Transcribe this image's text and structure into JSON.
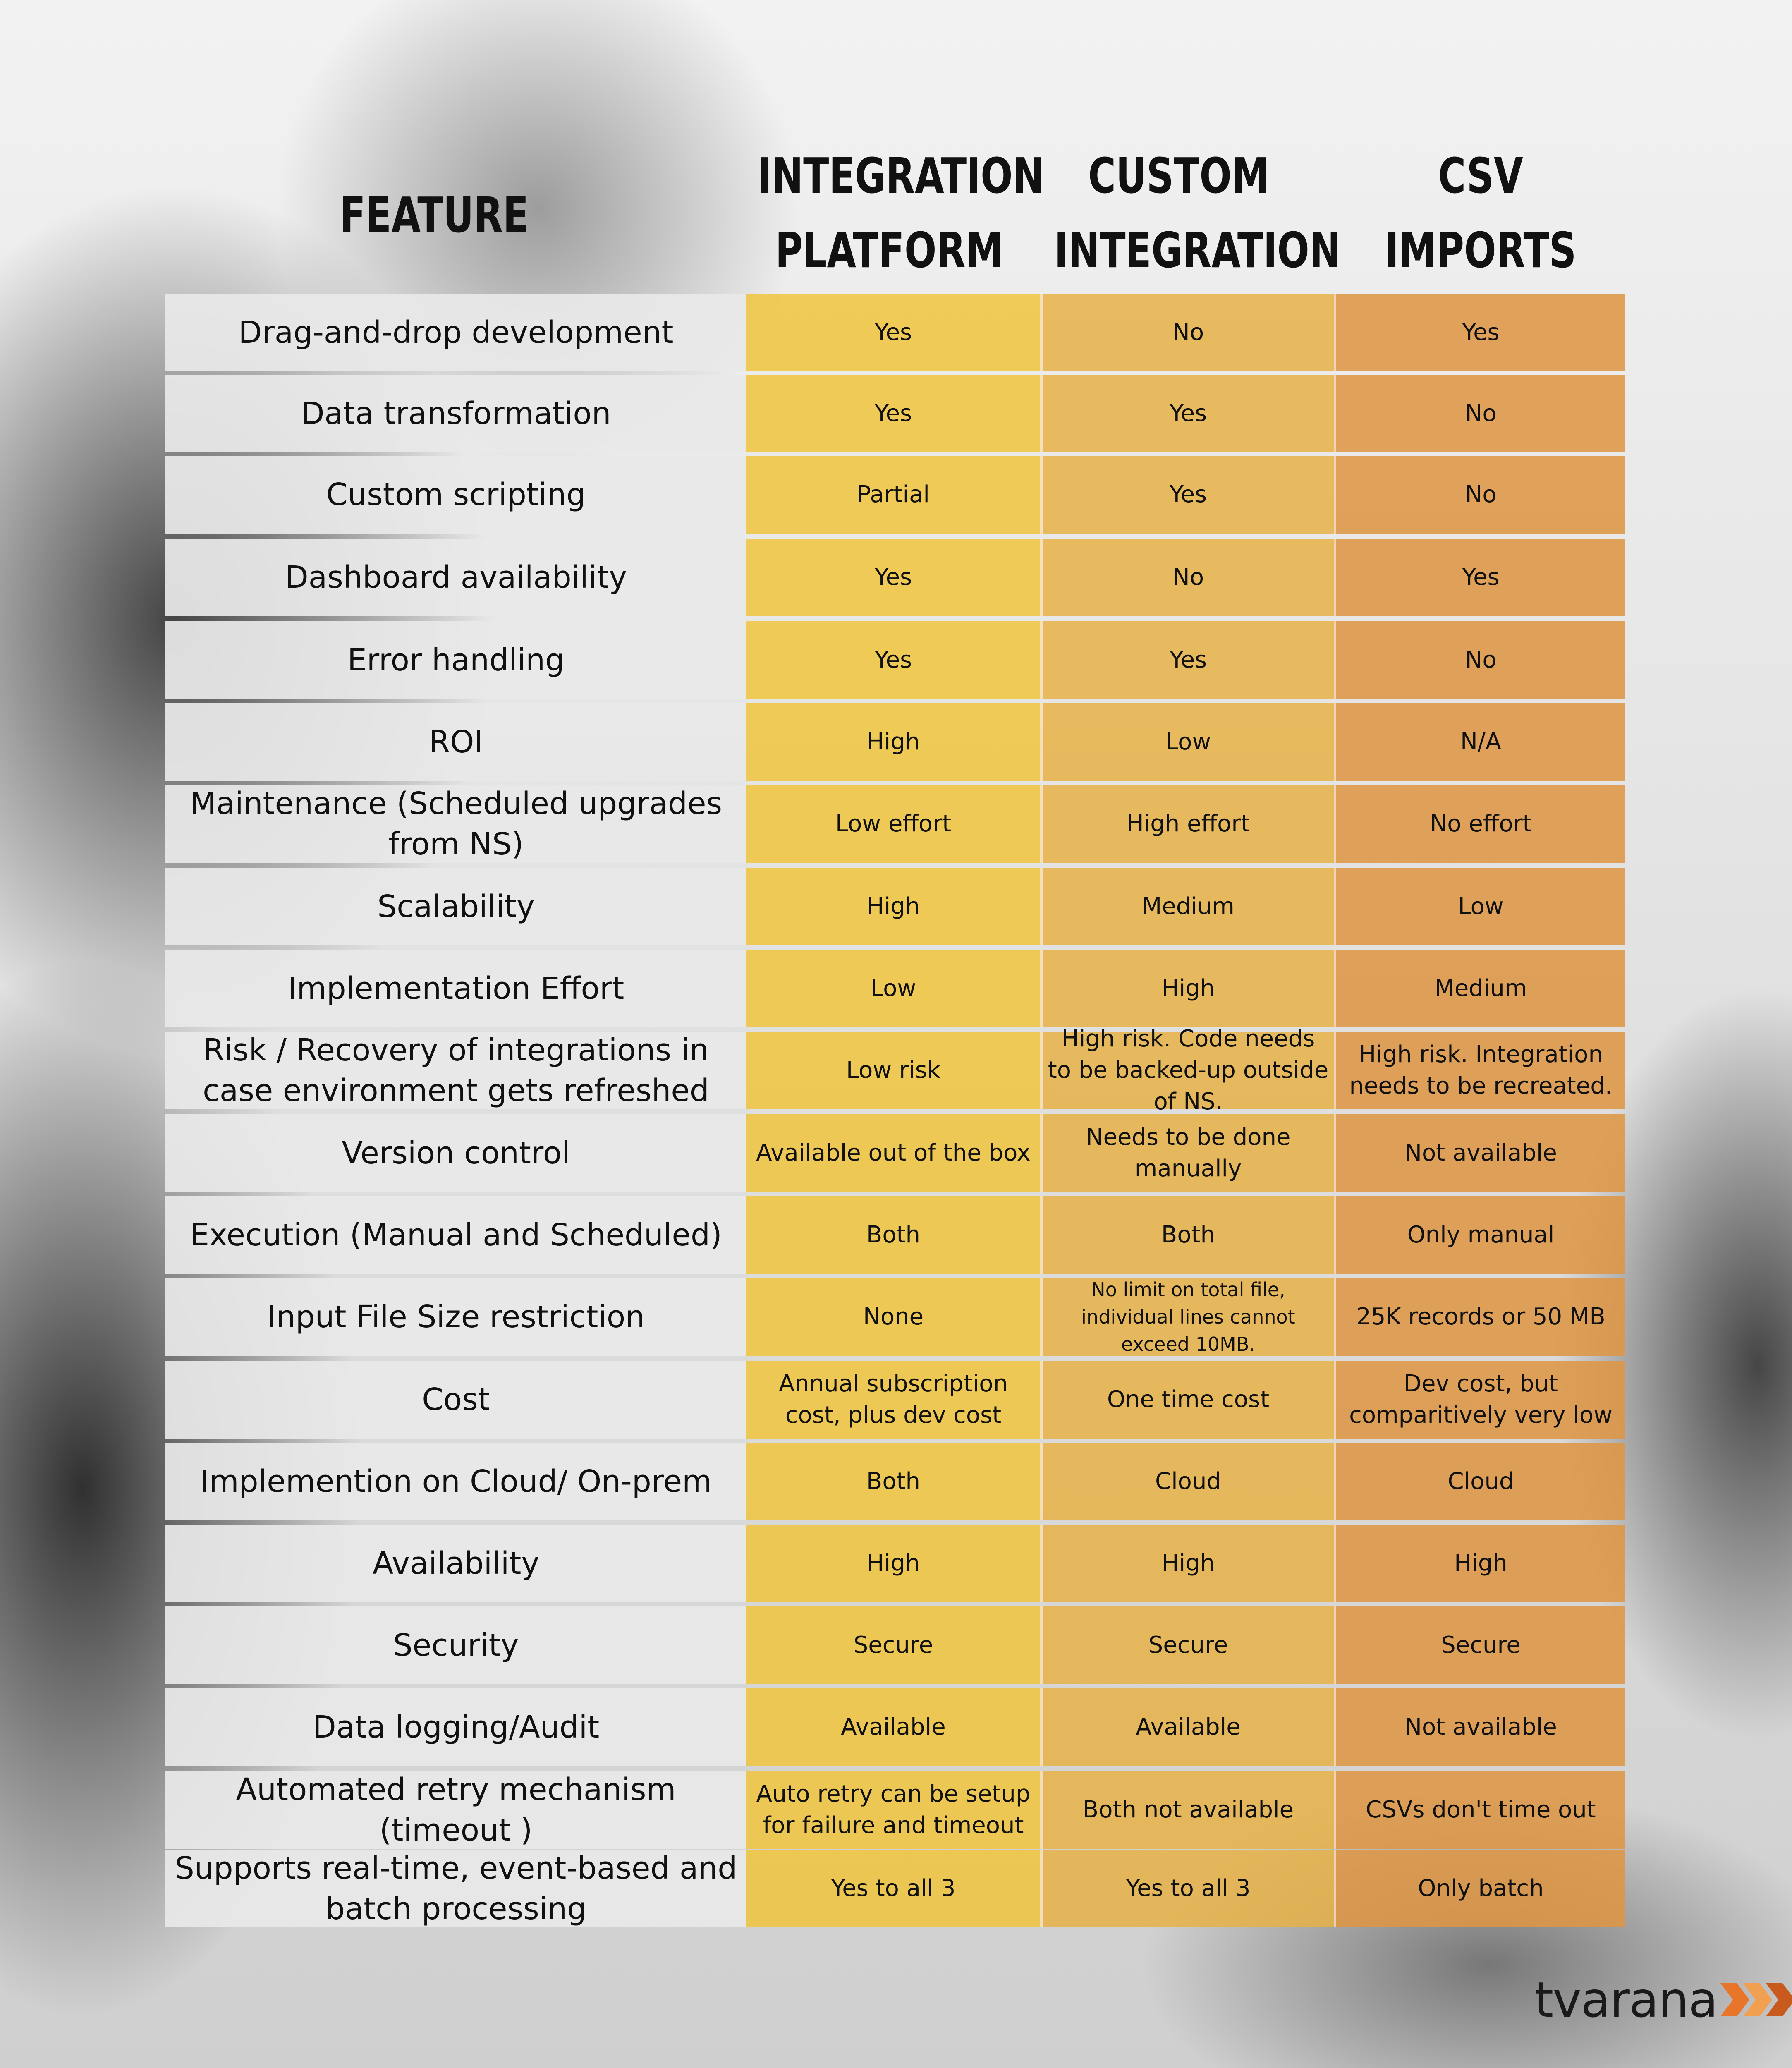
{
  "header": {
    "feature": "FEATURE",
    "col1_line1": "INTEGRATION",
    "col1_line2": "PLATFORM",
    "col2_line1": "CUSTOM",
    "col2_line2": "INTEGRATION",
    "col3_line1": "CSV",
    "col3_line2": "IMPORTS"
  },
  "rows": [
    {
      "feature": "Drag-and-drop development",
      "c1": "Yes",
      "c2": "No",
      "c3": "Yes"
    },
    {
      "feature": "Data transformation",
      "c1": "Yes",
      "c2": "Yes",
      "c3": "No"
    },
    {
      "feature": "Custom scripting",
      "c1": "Partial",
      "c2": "Yes",
      "c3": "No"
    },
    {
      "feature": "Dashboard availability",
      "c1": "Yes",
      "c2": "No",
      "c3": "Yes"
    },
    {
      "feature": "Error handling",
      "c1": "Yes",
      "c2": "Yes",
      "c3": "No"
    },
    {
      "feature": "ROI",
      "c1": "High",
      "c2": "Low",
      "c3": "N/A"
    },
    {
      "feature": "Maintenance (Scheduled upgrades from NS)",
      "c1": "Low effort",
      "c2": "High effort",
      "c3": "No effort"
    },
    {
      "feature": "Scalability",
      "c1": "High",
      "c2": "Medium",
      "c3": "Low"
    },
    {
      "feature": "Implementation Effort",
      "c1": "Low",
      "c2": "High",
      "c3": "Medium"
    },
    {
      "feature": "Risk / Recovery of integrations in case environment gets refreshed",
      "c1": "Low risk",
      "c2": "High risk. Code needs to be backed-up outside of NS.",
      "c3": "High risk. Integration needs to be recreated."
    },
    {
      "feature": "Version control",
      "c1": "Available out of the box",
      "c2": "Needs to be done manually",
      "c3": "Not available"
    },
    {
      "feature": "Execution (Manual and Scheduled)",
      "c1": "Both",
      "c2": "Both",
      "c3": "Only manual"
    },
    {
      "feature": "Input File Size restriction",
      "c1": "None",
      "c2": "No limit on total file, individual lines cannot exceed 10MB.",
      "c3": "25K records or 50 MB"
    },
    {
      "feature": "Cost",
      "c1": "Annual subscription cost, plus dev cost",
      "c2": "One time cost",
      "c3": "Dev cost, but comparitively very low"
    },
    {
      "feature": "Implemention on Cloud/ On-prem",
      "c1": "Both",
      "c2": "Cloud",
      "c3": "Cloud"
    },
    {
      "feature": "Availability",
      "c1": "High",
      "c2": "High",
      "c3": "High"
    },
    {
      "feature": "Security",
      "c1": "Secure",
      "c2": "Secure",
      "c3": "Secure"
    },
    {
      "feature": "Data logging/Audit",
      "c1": "Available",
      "c2": "Available",
      "c3": "Not available"
    },
    {
      "feature": "Automated retry mechanism (timeout )",
      "c1": "Auto retry can be setup for failure and timeout",
      "c2": "Both not available",
      "c3": "CSVs don't time out"
    },
    {
      "feature": "Supports real-time, event-based and batch processing",
      "c1": "Yes to all 3",
      "c2": "Yes to all 3",
      "c3": "Only batch"
    }
  ],
  "logo": {
    "text": "tvarana",
    "accent_color": "#e8762a",
    "icon": "chevron-arrows-icon"
  },
  "colors": {
    "col1": "#f0c43c",
    "col2": "#e8b246",
    "col3": "#de9644",
    "feature_bg": "#e8e8e8"
  }
}
